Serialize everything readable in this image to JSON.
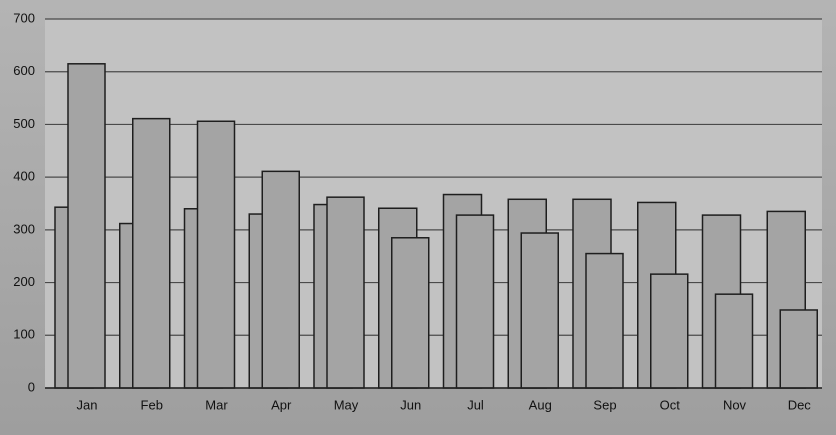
{
  "chart_data": {
    "type": "bar",
    "categories": [
      "Jan",
      "Feb",
      "Mar",
      "Apr",
      "May",
      "Jun",
      "Jul",
      "Aug",
      "Sep",
      "Oct",
      "Nov",
      "Dec"
    ],
    "series": [
      {
        "color": "#a4a4a4",
        "values": [
          343,
          312,
          340,
          330,
          348,
          341,
          367,
          358,
          358,
          352,
          328,
          335
        ]
      },
      {
        "color": "#a4a4a4",
        "values": [
          615,
          511,
          506,
          411,
          362,
          285,
          328,
          294,
          255,
          216,
          178,
          148
        ]
      }
    ],
    "ylim": [
      0,
      700
    ],
    "yticks": [
      0,
      100,
      200,
      300,
      400,
      500,
      600,
      700
    ],
    "grid": true
  }
}
